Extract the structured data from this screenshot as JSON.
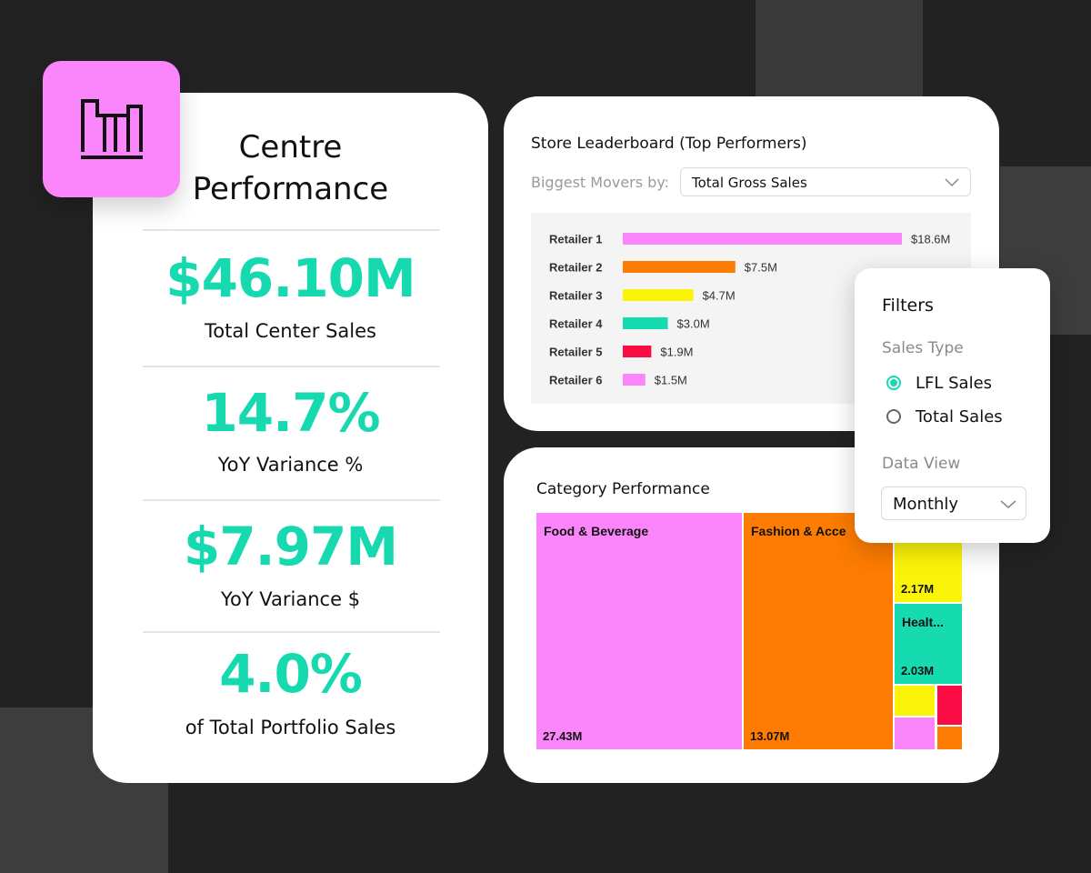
{
  "logo": {
    "icon": "bar-chart-logo-icon",
    "color": "#fb86fb"
  },
  "kpi_panel": {
    "title_line1": "Centre",
    "title_line2": "Performance",
    "metrics": [
      {
        "value": "$46.10M",
        "label": "Total Center Sales"
      },
      {
        "value": "14.7%",
        "label": "YoY Variance %"
      },
      {
        "value": "$7.97M",
        "label": "YoY Variance $"
      },
      {
        "value": "4.0%",
        "label": "of Total Portfolio Sales"
      }
    ],
    "accent_color": "#17d9b0"
  },
  "leaderboard": {
    "title": "Store Leaderboard (Top Performers)",
    "movers_label": "Biggest Movers by:",
    "movers_selected": "Total Gross Sales"
  },
  "category": {
    "title": "Category Performance"
  },
  "filters": {
    "title": "Filters",
    "sales_type_label": "Sales Type",
    "options": [
      {
        "label": "LFL Sales",
        "checked": true
      },
      {
        "label": "Total Sales",
        "checked": false
      }
    ],
    "data_view_label": "Data View",
    "data_view_selected": "Monthly"
  },
  "chart_data": [
    {
      "type": "bar",
      "orientation": "horizontal",
      "categories": [
        "Retailer 1",
        "Retailer 2",
        "Retailer 3",
        "Retailer 4",
        "Retailer 5",
        "Retailer 6"
      ],
      "values": [
        18.6,
        7.5,
        4.7,
        3.0,
        1.9,
        1.5
      ],
      "value_labels": [
        "$18.6M",
        "$7.5M",
        "$4.7M",
        "$3.0M",
        "$1.9M",
        "$1.5M"
      ],
      "colors": [
        "#fb86fb",
        "#fd7c01",
        "#fcf408",
        "#16dbb1",
        "#fc0c45",
        "#fb86fb"
      ],
      "unit": "$M"
    },
    {
      "type": "treemap",
      "items": [
        {
          "label": "Food & Beverage",
          "value": 27.43,
          "value_label": "27.43M",
          "color": "#fb86fb"
        },
        {
          "label": "Fashion & Acce",
          "value": 13.07,
          "value_label": "13.07M",
          "color": "#fd7c01"
        },
        {
          "label": "",
          "value": 2.17,
          "value_label": "2.17M",
          "color": "#fcf408"
        },
        {
          "label": "Healt...",
          "value": 2.03,
          "value_label": "2.03M",
          "color": "#16dbb1"
        },
        {
          "label": "",
          "value": null,
          "value_label": "",
          "color": "#fcf408"
        },
        {
          "label": "",
          "value": null,
          "value_label": "",
          "color": "#fc0c45"
        },
        {
          "label": "",
          "value": null,
          "value_label": "",
          "color": "#fb86fb"
        },
        {
          "label": "",
          "value": null,
          "value_label": "",
          "color": "#fd7c01"
        }
      ]
    }
  ]
}
